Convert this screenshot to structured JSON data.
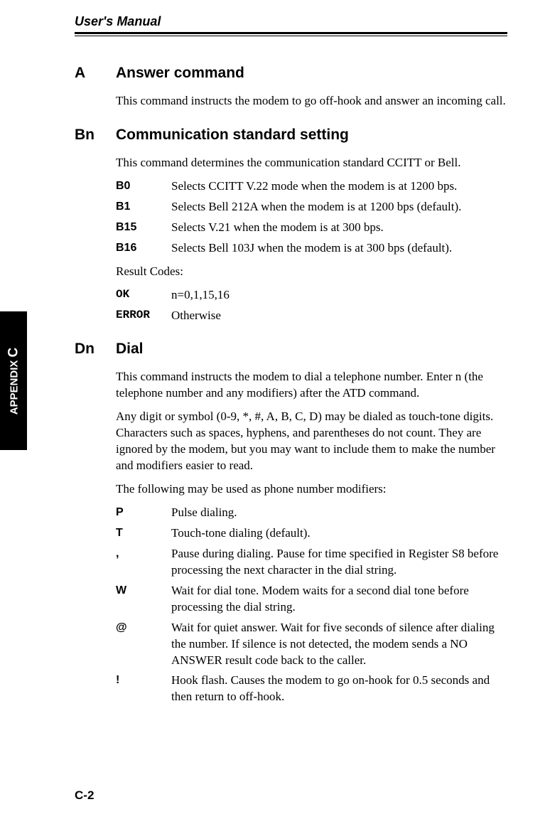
{
  "header": {
    "title": "User's Manual"
  },
  "sideTab": {
    "prefix": "APPENDIX ",
    "letter": "C"
  },
  "pageNumber": "C-2",
  "sections": [
    {
      "code": "A",
      "title": "Answer command",
      "paras": [
        "This command instructs the modem to go off-hook and answer an incoming call."
      ]
    },
    {
      "code": "Bn",
      "title": "Communication standard setting",
      "paras": [
        "This command determines the communication standard CCITT or Bell."
      ],
      "defs": [
        {
          "term": "B0",
          "termStyle": "bold",
          "desc": "Selects CCITT V.22 mode when the modem is at 1200 bps."
        },
        {
          "term": "B1",
          "termStyle": "bold",
          "desc": "Selects Bell 212A when the modem is at 1200 bps  (default)."
        },
        {
          "term": "B15",
          "termStyle": "bold",
          "desc": "Selects V.21 when the modem is at 300 bps."
        },
        {
          "term": "B16",
          "termStyle": "bold",
          "desc": "Selects Bell 103J when the modem is at 300 bps (default)."
        }
      ],
      "resultLabel": "Result Codes:",
      "results": [
        {
          "term": "OK",
          "termStyle": "mono",
          "desc": "n=0,1,15,16"
        },
        {
          "term": "ERROR",
          "termStyle": "mono",
          "desc": "Otherwise"
        }
      ]
    },
    {
      "code": "Dn",
      "title": "Dial",
      "paras": [
        "This command instructs the modem to dial a telephone number. Enter n (the telephone number and any modifiers) after the ATD command.",
        "Any digit or symbol (0-9, *, #, A, B, C, D) may be dialed as touch-tone digits. Characters such as spaces, hyphens, and parentheses do not count. They are ignored by the modem, but you may want to include them to make the number and modifiers easier to read.",
        "The following may be used as phone number modifiers:"
      ],
      "defs": [
        {
          "term": "P",
          "termStyle": "bold",
          "desc": "Pulse dialing."
        },
        {
          "term": "T",
          "termStyle": "bold",
          "desc": "Touch-tone dialing (default)."
        },
        {
          "term": ",",
          "termStyle": "bold",
          "desc": "Pause during dialing. Pause for time specified in Register S8 before processing the next character in the dial string."
        },
        {
          "term": "W",
          "termStyle": "bold",
          "desc": "Wait for dial tone. Modem waits for a second dial tone before processing the dial string."
        },
        {
          "term": "@",
          "termStyle": "bold",
          "desc": "Wait for quiet answer. Wait for five seconds of silence after dialing the number. If silence is not detected, the modem sends a NO ANSWER result code back to the caller."
        },
        {
          "term": "!",
          "termStyle": "bold",
          "desc": "Hook flash. Causes the modem to go on-hook for 0.5 seconds and then return to off-hook."
        }
      ]
    }
  ]
}
